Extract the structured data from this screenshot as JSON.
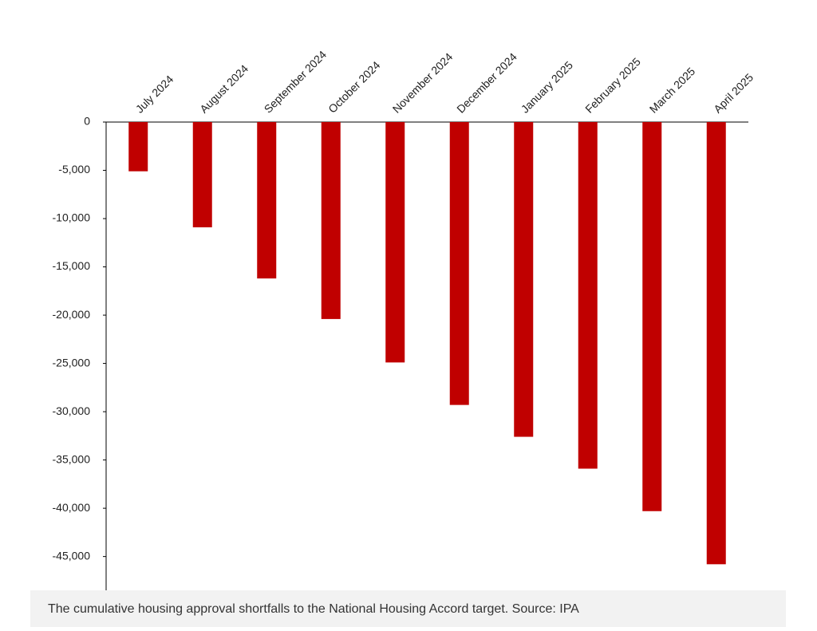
{
  "chart_data": {
    "type": "bar",
    "caption": "The cumulative housing approval shortfalls to the National Housing Accord target. Source: IPA",
    "categories": [
      "July 2024",
      "August 2024",
      "September 2024",
      "October 2024",
      "November 2024",
      "December 2024",
      "January 2025",
      "February 2025",
      "March 2025",
      "April 2025"
    ],
    "values": [
      -5100,
      -10900,
      -16200,
      -20400,
      -24900,
      -29300,
      -32600,
      -35900,
      -40300,
      -45800
    ],
    "color": "#c00000",
    "ylim": [
      -48500,
      0
    ],
    "yticks": [
      0,
      {
        "value": -5000,
        "label": "-5,000"
      },
      {
        "value": -10000,
        "label": "-10,000"
      },
      {
        "value": -15000,
        "label": "-15,000"
      },
      {
        "value": -20000,
        "label": "-20,000"
      },
      {
        "value": -25000,
        "label": "-25,000"
      },
      {
        "value": -30000,
        "label": "-30,000"
      },
      {
        "value": -35000,
        "label": "-35,000"
      },
      {
        "value": -40000,
        "label": "-40,000"
      },
      {
        "value": -45000,
        "label": "-45,000"
      }
    ],
    "grid": false
  }
}
